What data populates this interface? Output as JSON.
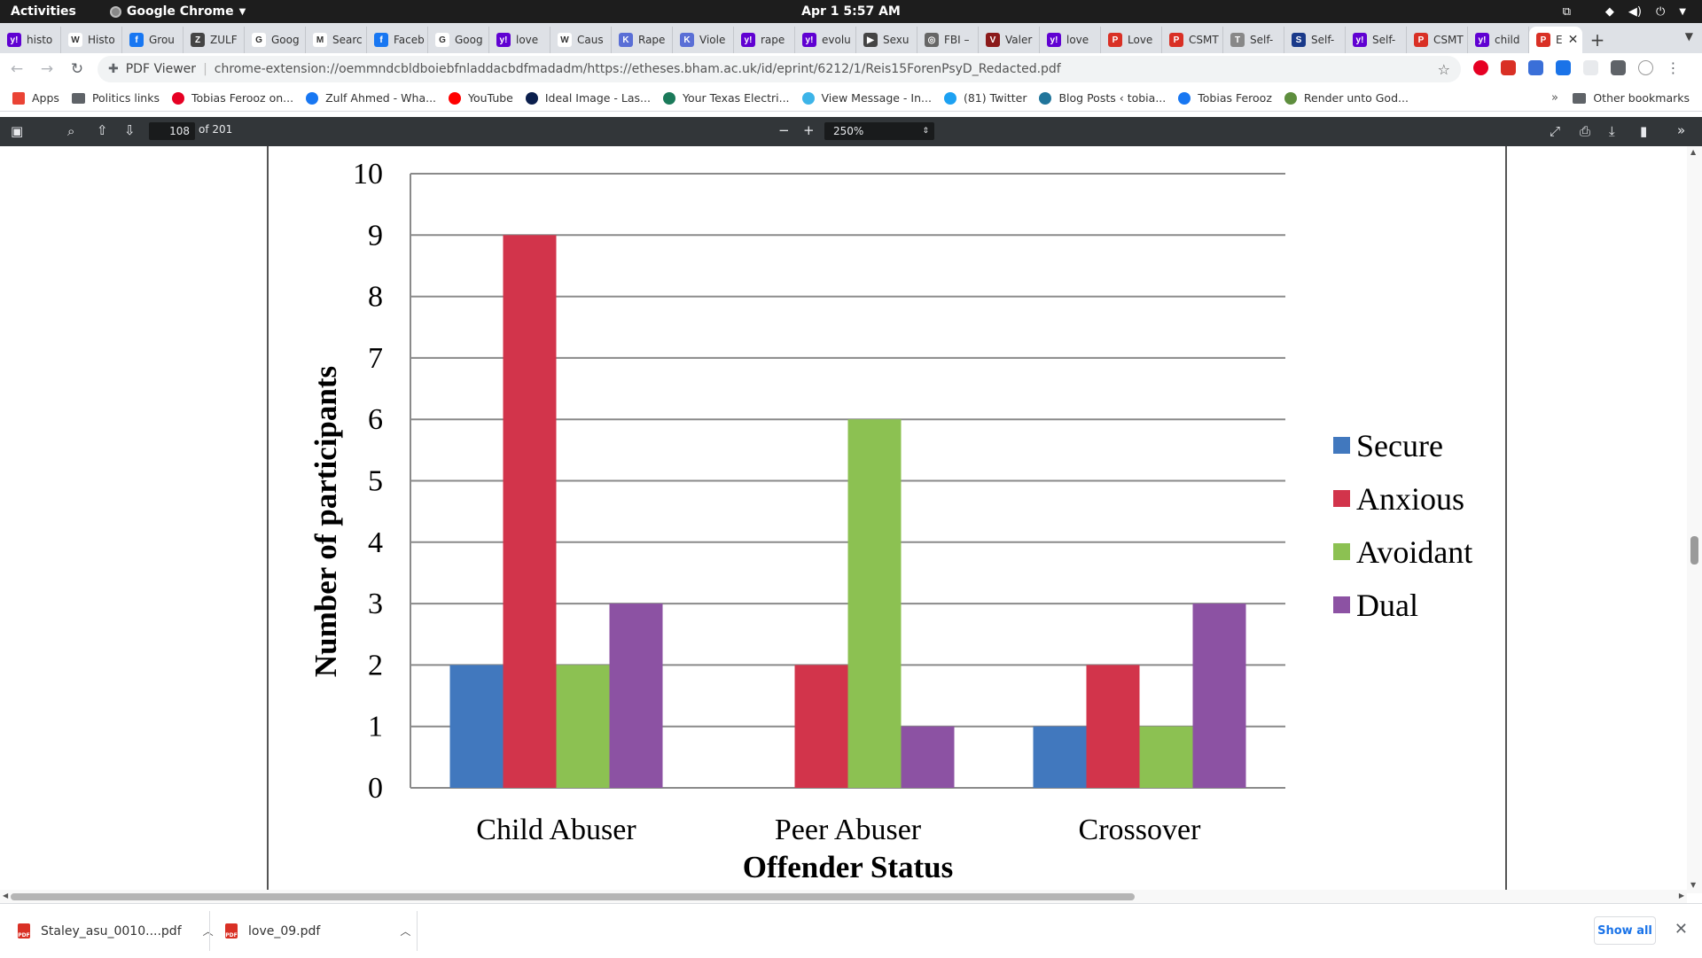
{
  "topbar": {
    "activities": "Activities",
    "app_name": "Google Chrome",
    "clock": "Apr 1   5:57 AM"
  },
  "tabs": [
    {
      "label": "histo",
      "icon": "yahoo-icon",
      "color": "#6001d2",
      "glyph": "y!"
    },
    {
      "label": "Histo",
      "icon": "wikipedia-icon",
      "color": "#ffffff",
      "glyph": "W"
    },
    {
      "label": "Grou",
      "icon": "facebook-icon",
      "color": "#1877f2",
      "glyph": "f"
    },
    {
      "label": "ZULF",
      "icon": "image-icon",
      "color": "#444444",
      "glyph": "Z"
    },
    {
      "label": "Goog",
      "icon": "google-icon",
      "color": "#ffffff",
      "glyph": "G"
    },
    {
      "label": "Searc",
      "icon": "gmail-icon",
      "color": "#ffffff",
      "glyph": "M"
    },
    {
      "label": "Faceb",
      "icon": "facebook-icon",
      "color": "#1877f2",
      "glyph": "f"
    },
    {
      "label": "Goog",
      "icon": "google-icon",
      "color": "#ffffff",
      "glyph": "G"
    },
    {
      "label": "love",
      "icon": "yahoo-icon",
      "color": "#6001d2",
      "glyph": "y!"
    },
    {
      "label": "Caus",
      "icon": "wikipedia-icon",
      "color": "#ffffff",
      "glyph": "W"
    },
    {
      "label": "Rape",
      "icon": "k-icon",
      "color": "#5a6fd6",
      "glyph": "K"
    },
    {
      "label": "Viole",
      "icon": "k-icon",
      "color": "#5a6fd6",
      "glyph": "K"
    },
    {
      "label": "rape",
      "icon": "yahoo-icon",
      "color": "#6001d2",
      "glyph": "y!"
    },
    {
      "label": "evolu",
      "icon": "yahoo-icon",
      "color": "#6001d2",
      "glyph": "y!"
    },
    {
      "label": "Sexu",
      "icon": "play-icon",
      "color": "#444444",
      "glyph": "▶"
    },
    {
      "label": "FBI –",
      "icon": "globe-icon",
      "color": "#666666",
      "glyph": "◎"
    },
    {
      "label": "Valer",
      "icon": "shield-icon",
      "color": "#8b1a1a",
      "glyph": "V"
    },
    {
      "label": "love",
      "icon": "yahoo-icon",
      "color": "#6001d2",
      "glyph": "y!"
    },
    {
      "label": "Love",
      "icon": "pdf-icon",
      "color": "#d93025",
      "glyph": "P"
    },
    {
      "label": "CSMT",
      "icon": "pdf-icon",
      "color": "#d93025",
      "glyph": "P"
    },
    {
      "label": "Self-",
      "icon": "doc-icon",
      "color": "#888888",
      "glyph": "T"
    },
    {
      "label": "Self-",
      "icon": "s-icon",
      "color": "#1a3a8a",
      "glyph": "S"
    },
    {
      "label": "Self-",
      "icon": "yahoo-icon",
      "color": "#6001d2",
      "glyph": "y!"
    },
    {
      "label": "CSMT",
      "icon": "pdf-icon",
      "color": "#d93025",
      "glyph": "P"
    },
    {
      "label": "child",
      "icon": "yahoo-icon",
      "color": "#6001d2",
      "glyph": "y!"
    }
  ],
  "active_tab": {
    "label": "E",
    "icon": "pdf-icon",
    "color": "#d93025",
    "glyph": "P"
  },
  "omnibox": {
    "extension_name": "PDF Viewer",
    "url": "chrome-extension://oemmndcbldboiebfnladdacbdfmadadm/https://etheses.bham.ac.uk/id/eprint/6212/1/Reis15ForenPsyD_Redacted.pdf"
  },
  "bookmarks": [
    {
      "label": "Apps",
      "icon": "apps-grid-icon",
      "color": "#ea4335"
    },
    {
      "label": "Politics links",
      "icon": "folder-icon",
      "color": "#5f6368"
    },
    {
      "label": "Tobias Ferooz on...",
      "icon": "pinterest-icon",
      "color": "#e60023"
    },
    {
      "label": "Zulf Ahmed - Wha...",
      "icon": "facebook-icon",
      "color": "#1877f2"
    },
    {
      "label": "YouTube",
      "icon": "youtube-icon",
      "color": "#ff0000"
    },
    {
      "label": "Ideal Image - Las...",
      "icon": "ideal-image-icon",
      "color": "#0b1f4d"
    },
    {
      "label": "Your Texas Electri...",
      "icon": "globe-icon",
      "color": "#1b7a5a"
    },
    {
      "label": "View Message - In...",
      "icon": "message-icon",
      "color": "#3db4e8"
    },
    {
      "label": "(81) Twitter",
      "icon": "twitter-icon",
      "color": "#1da1f2"
    },
    {
      "label": "Blog Posts ‹ tobia...",
      "icon": "wordpress-icon",
      "color": "#21759b"
    },
    {
      "label": "Tobias Ferooz",
      "icon": "facebook-icon",
      "color": "#1877f2"
    },
    {
      "label": "Render unto God...",
      "icon": "shopify-icon",
      "color": "#5e8e3e"
    }
  ],
  "bookmarks_more": "»",
  "other_bookmarks": "Other bookmarks",
  "pdf_toolbar": {
    "page_current": "108",
    "page_total": "of 201",
    "zoom": "250%"
  },
  "chart_data": {
    "type": "bar",
    "categories": [
      "Child Abuser",
      "Peer Abuser",
      "Crossover"
    ],
    "series": [
      {
        "name": "Secure",
        "color": "#4178be",
        "values": [
          2,
          0,
          1
        ]
      },
      {
        "name": "Anxious",
        "color": "#d2344b",
        "values": [
          9,
          2,
          2
        ]
      },
      {
        "name": "Avoidant",
        "color": "#8cc152",
        "values": [
          2,
          6,
          1
        ]
      },
      {
        "name": "Dual",
        "color": "#8c52a3",
        "values": [
          3,
          1,
          3
        ]
      }
    ],
    "xlabel": "Offender Status",
    "ylabel": "Number of participants",
    "ylim": [
      0,
      10
    ],
    "yticks": [
      0,
      1,
      2,
      3,
      4,
      5,
      6,
      7,
      8,
      9,
      10
    ],
    "grid": true,
    "legend": "right"
  },
  "downloads": [
    {
      "filename": "Staley_asu_0010....pdf"
    },
    {
      "filename": "love_09.pdf"
    }
  ],
  "show_all": "Show all"
}
